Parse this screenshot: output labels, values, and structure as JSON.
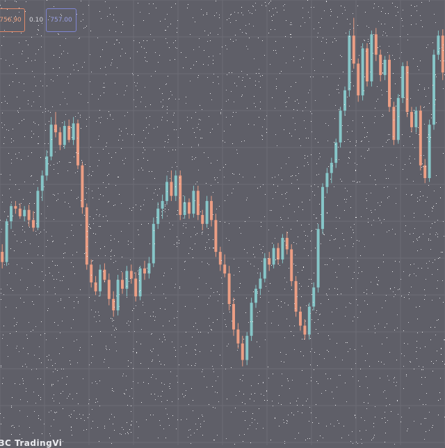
{
  "header": {
    "sell_price": "756.90",
    "spread": "0.10",
    "buy_price": "757.00"
  },
  "footer": {
    "watermark": "ЗС TradingVi"
  },
  "colors": {
    "background": "#5f5f68",
    "grid": "#6c6c76",
    "up": "#86c6c8",
    "down": "#ec9e84",
    "sell_border": "#e08a6a",
    "buy_border": "#7f86d4"
  },
  "chart_data": {
    "type": "candlestick",
    "title": "",
    "xlabel": "",
    "ylabel": "",
    "grid": true,
    "ylim": [
      740,
      775
    ],
    "ohlc": [
      [
        755.2,
        755.8,
        753.9,
        754.4
      ],
      [
        754.4,
        757.8,
        754.1,
        757.6
      ],
      [
        757.6,
        759.0,
        757.0,
        758.8
      ],
      [
        758.8,
        759.2,
        758.2,
        758.6
      ],
      [
        758.6,
        759.0,
        757.8,
        758.0
      ],
      [
        758.0,
        758.8,
        757.6,
        758.5
      ],
      [
        758.5,
        758.9,
        757.2,
        757.7
      ],
      [
        757.7,
        758.4,
        756.8,
        757.1
      ],
      [
        757.1,
        760.3,
        756.9,
        760.0
      ],
      [
        760.0,
        761.6,
        759.2,
        761.2
      ],
      [
        761.2,
        763.2,
        760.8,
        762.7
      ],
      [
        762.7,
        765.8,
        762.4,
        765.2
      ],
      [
        765.2,
        766.2,
        764.2,
        764.6
      ],
      [
        764.6,
        765.0,
        763.2,
        763.6
      ],
      [
        763.6,
        765.5,
        763.3,
        765.1
      ],
      [
        765.1,
        765.6,
        763.8,
        764.0
      ],
      [
        764.0,
        765.8,
        763.6,
        765.3
      ],
      [
        765.3,
        765.6,
        761.7,
        762.0
      ],
      [
        762.0,
        762.3,
        758.2,
        758.7
      ],
      [
        758.7,
        759.0,
        753.8,
        754.2
      ],
      [
        754.2,
        754.6,
        752.4,
        752.8
      ],
      [
        752.8,
        753.3,
        751.8,
        752.1
      ],
      [
        752.1,
        754.2,
        751.7,
        753.8
      ],
      [
        753.8,
        754.3,
        752.8,
        753.0
      ],
      [
        753.0,
        753.5,
        751.0,
        751.5
      ],
      [
        751.5,
        752.1,
        750.1,
        750.6
      ],
      [
        750.6,
        753.4,
        750.2,
        753.0
      ],
      [
        753.0,
        753.6,
        751.9,
        752.3
      ],
      [
        752.3,
        754.1,
        751.7,
        753.7
      ],
      [
        753.7,
        754.2,
        752.7,
        753.1
      ],
      [
        753.1,
        753.6,
        751.3,
        751.7
      ],
      [
        751.7,
        754.1,
        751.4,
        753.9
      ],
      [
        753.9,
        754.5,
        753.0,
        753.5
      ],
      [
        753.5,
        754.8,
        753.1,
        754.3
      ],
      [
        754.3,
        757.9,
        754.0,
        757.4
      ],
      [
        757.4,
        759.1,
        757.0,
        758.6
      ],
      [
        758.6,
        759.7,
        757.8,
        759.2
      ],
      [
        759.2,
        761.2,
        758.9,
        760.7
      ],
      [
        760.7,
        761.6,
        759.2,
        759.6
      ],
      [
        759.6,
        761.6,
        759.2,
        761.2
      ],
      [
        761.2,
        761.6,
        757.7,
        758.1
      ],
      [
        758.1,
        759.6,
        757.8,
        759.1
      ],
      [
        759.1,
        759.4,
        757.8,
        758.2
      ],
      [
        758.2,
        760.4,
        757.9,
        760.0
      ],
      [
        760.0,
        760.4,
        757.7,
        758.1
      ],
      [
        758.1,
        758.5,
        756.9,
        757.4
      ],
      [
        757.4,
        759.6,
        757.1,
        759.2
      ],
      [
        759.2,
        759.6,
        757.2,
        757.7
      ],
      [
        757.7,
        758.2,
        754.8,
        755.2
      ],
      [
        755.2,
        755.6,
        753.7,
        754.2
      ],
      [
        754.2,
        755.0,
        753.2,
        753.5
      ],
      [
        753.5,
        754.1,
        750.6,
        751.1
      ],
      [
        751.1,
        751.6,
        748.6,
        749.1
      ],
      [
        749.1,
        749.6,
        747.6,
        748.0
      ],
      [
        748.0,
        748.6,
        746.2,
        746.7
      ],
      [
        746.7,
        748.9,
        746.3,
        748.6
      ],
      [
        748.6,
        751.6,
        748.2,
        751.2
      ],
      [
        751.2,
        752.6,
        750.8,
        752.3
      ],
      [
        752.3,
        753.6,
        751.8,
        753.1
      ],
      [
        753.1,
        755.1,
        752.8,
        754.7
      ],
      [
        754.7,
        755.2,
        753.7,
        754.2
      ],
      [
        754.2,
        755.8,
        753.9,
        755.5
      ],
      [
        755.5,
        755.9,
        754.2,
        754.6
      ],
      [
        754.6,
        756.6,
        754.3,
        756.3
      ],
      [
        756.3,
        756.8,
        755.0,
        755.4
      ],
      [
        755.4,
        755.8,
        752.5,
        752.9
      ],
      [
        752.9,
        753.3,
        750.1,
        750.5
      ],
      [
        750.5,
        750.9,
        749.0,
        749.4
      ],
      [
        749.4,
        749.9,
        748.3,
        748.7
      ],
      [
        748.7,
        751.2,
        748.3,
        750.9
      ],
      [
        750.9,
        752.8,
        750.6,
        752.4
      ],
      [
        752.4,
        757.4,
        752.0,
        757.0
      ],
      [
        757.0,
        760.6,
        756.6,
        760.3
      ],
      [
        760.3,
        761.8,
        759.8,
        761.4
      ],
      [
        761.4,
        762.6,
        760.6,
        762.2
      ],
      [
        762.2,
        764.1,
        761.8,
        763.8
      ],
      [
        763.8,
        766.6,
        763.4,
        766.3
      ],
      [
        766.3,
        768.2,
        765.9,
        767.9
      ],
      [
        767.9,
        772.6,
        767.4,
        772.2
      ],
      [
        772.2,
        773.6,
        769.6,
        770.0
      ],
      [
        770.0,
        770.4,
        767.0,
        767.5
      ],
      [
        767.5,
        771.6,
        767.1,
        771.2
      ],
      [
        771.2,
        771.6,
        768.2,
        768.6
      ],
      [
        768.6,
        772.6,
        768.2,
        772.3
      ],
      [
        772.3,
        772.8,
        770.2,
        770.7
      ],
      [
        770.7,
        771.1,
        768.6,
        769.1
      ],
      [
        769.1,
        770.6,
        768.7,
        770.3
      ],
      [
        770.3,
        770.7,
        766.2,
        766.6
      ],
      [
        766.6,
        767.0,
        763.6,
        764.0
      ],
      [
        764.0,
        767.6,
        763.7,
        767.3
      ],
      [
        767.3,
        770.1,
        766.9,
        769.8
      ],
      [
        769.8,
        770.2,
        765.8,
        766.2
      ],
      [
        766.2,
        766.6,
        764.6,
        765.0
      ],
      [
        765.0,
        766.6,
        764.6,
        766.3
      ],
      [
        766.3,
        766.7,
        761.6,
        762.0
      ],
      [
        762.0,
        762.5,
        760.6,
        761.0
      ],
      [
        761.0,
        765.6,
        760.7,
        765.2
      ],
      [
        765.2,
        771.1,
        764.8,
        770.7
      ],
      [
        770.7,
        772.6,
        770.3,
        772.2
      ],
      [
        772.2,
        772.7,
        768.7,
        769.3
      ]
    ]
  }
}
